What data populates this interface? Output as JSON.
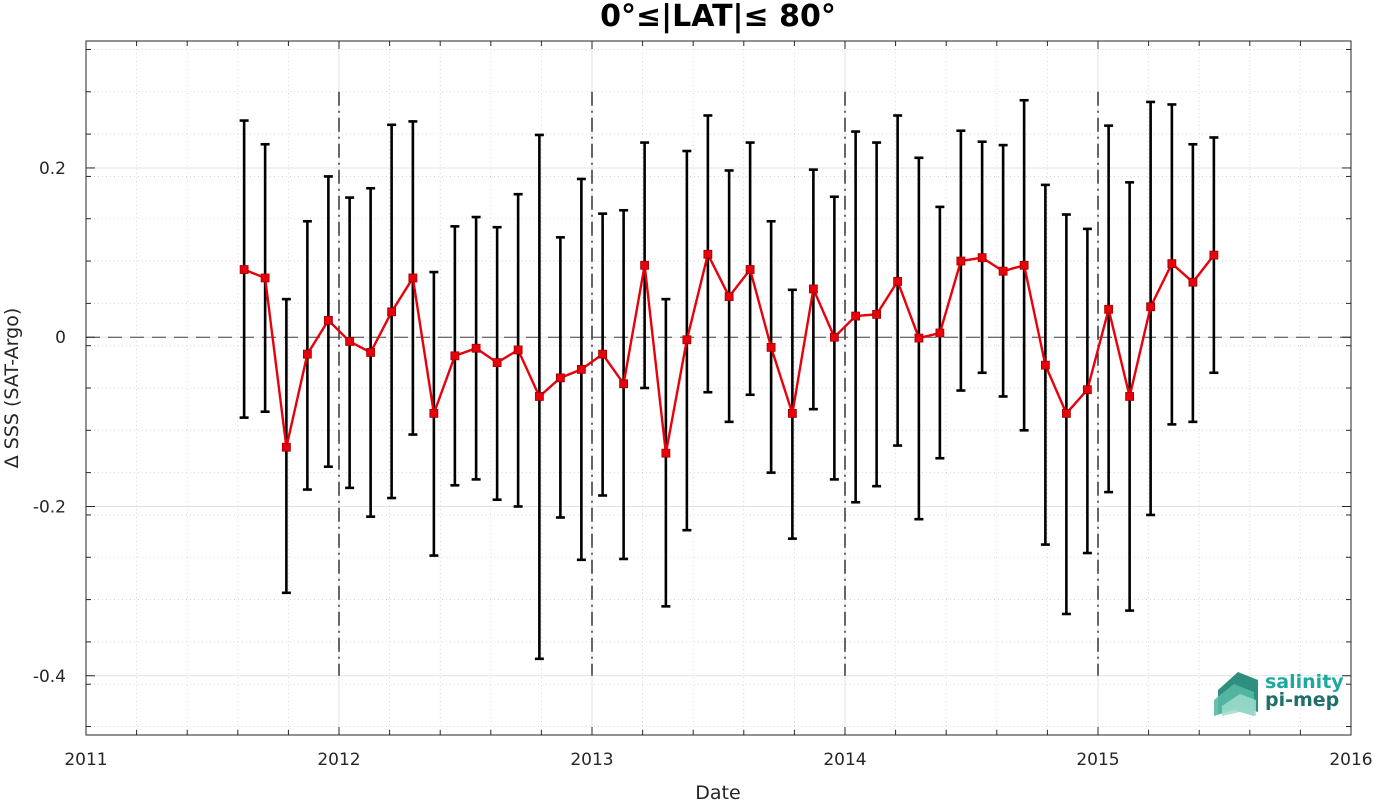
{
  "chart_data": {
    "type": "line",
    "title": "0°≤|LAT|≤ 80°",
    "xlabel": "Date",
    "ylabel": "Δ SSS (SAT-Argo)",
    "xlim": [
      2011,
      2016
    ],
    "ylim": [
      -0.47,
      0.35
    ],
    "x_ticks": [
      2011,
      2012,
      2013,
      2014,
      2015,
      2016
    ],
    "x_tick_labels": [
      "2011",
      "2012",
      "2013",
      "2014",
      "2015",
      "2016"
    ],
    "y_ticks": [
      -0.4,
      -0.2,
      0,
      0.2
    ],
    "y_tick_labels": [
      "-0.4",
      "-0.2",
      "0",
      "0.2"
    ],
    "grid": true,
    "year_separators": [
      2012,
      2013,
      2014,
      2015
    ],
    "colors": {
      "series": "#e8000b",
      "marker": "#e8000b",
      "errorbar": "#000000"
    },
    "series": [
      {
        "x": [
          2011.625,
          2011.708,
          2011.792,
          2011.875,
          2011.958,
          2012.042,
          2012.125,
          2012.208,
          2012.292,
          2012.375,
          2012.458,
          2012.542,
          2012.625,
          2012.708,
          2012.792,
          2012.875,
          2012.958,
          2013.042,
          2013.125,
          2013.208,
          2013.292,
          2013.375,
          2013.458,
          2013.542,
          2013.625,
          2013.708,
          2013.792,
          2013.875,
          2013.958,
          2014.042,
          2014.125,
          2014.208,
          2014.292,
          2014.375,
          2014.458,
          2014.542,
          2014.625,
          2014.708,
          2014.792,
          2014.875,
          2014.958,
          2015.042,
          2015.125,
          2015.208,
          2015.292,
          2015.375,
          2015.458
        ],
        "y": [
          0.08,
          0.07,
          -0.13,
          -0.02,
          0.02,
          -0.005,
          -0.018,
          0.03,
          0.07,
          -0.09,
          -0.022,
          -0.013,
          -0.03,
          -0.015,
          -0.07,
          -0.048,
          -0.038,
          -0.02,
          -0.055,
          0.085,
          -0.137,
          -0.003,
          0.098,
          0.048,
          0.08,
          -0.012,
          -0.09,
          0.057,
          0,
          0.025,
          0.027,
          0.066,
          -0.001,
          0.005,
          0.09,
          0.094,
          0.078,
          0.085,
          -0.033,
          -0.09,
          -0.062,
          0.033,
          -0.07,
          0.036,
          0.087,
          0.065,
          0.097
        ],
        "err_low": [
          -0.095,
          -0.088,
          -0.302,
          -0.18,
          -0.153,
          -0.178,
          -0.212,
          -0.19,
          -0.115,
          -0.258,
          -0.175,
          -0.168,
          -0.192,
          -0.2,
          -0.38,
          -0.213,
          -0.263,
          -0.187,
          -0.262,
          -0.06,
          -0.318,
          -0.228,
          -0.065,
          -0.1,
          -0.068,
          -0.16,
          -0.238,
          -0.085,
          -0.168,
          -0.195,
          -0.176,
          -0.128,
          -0.215,
          -0.143,
          -0.063,
          -0.042,
          -0.07,
          -0.11,
          -0.245,
          -0.327,
          -0.255,
          -0.183,
          -0.323,
          -0.21,
          -0.103,
          -0.1,
          -0.042
        ],
        "err_high": [
          0.256,
          0.228,
          0.045,
          0.137,
          0.19,
          0.165,
          0.176,
          0.251,
          0.255,
          0.077,
          0.131,
          0.142,
          0.13,
          0.169,
          0.239,
          0.118,
          0.187,
          0.146,
          0.15,
          0.23,
          0.045,
          0.22,
          0.262,
          0.197,
          0.23,
          0.137,
          0.056,
          0.198,
          0.166,
          0.243,
          0.23,
          0.262,
          0.212,
          0.154,
          0.244,
          0.231,
          0.227,
          0.28,
          0.18,
          0.145,
          0.128,
          0.25,
          0.183,
          0.278,
          0.275,
          0.228,
          0.236
        ]
      }
    ]
  },
  "logo": {
    "line1": "salinity",
    "line2": "pi-mep",
    "color": "#1fa8a0"
  }
}
